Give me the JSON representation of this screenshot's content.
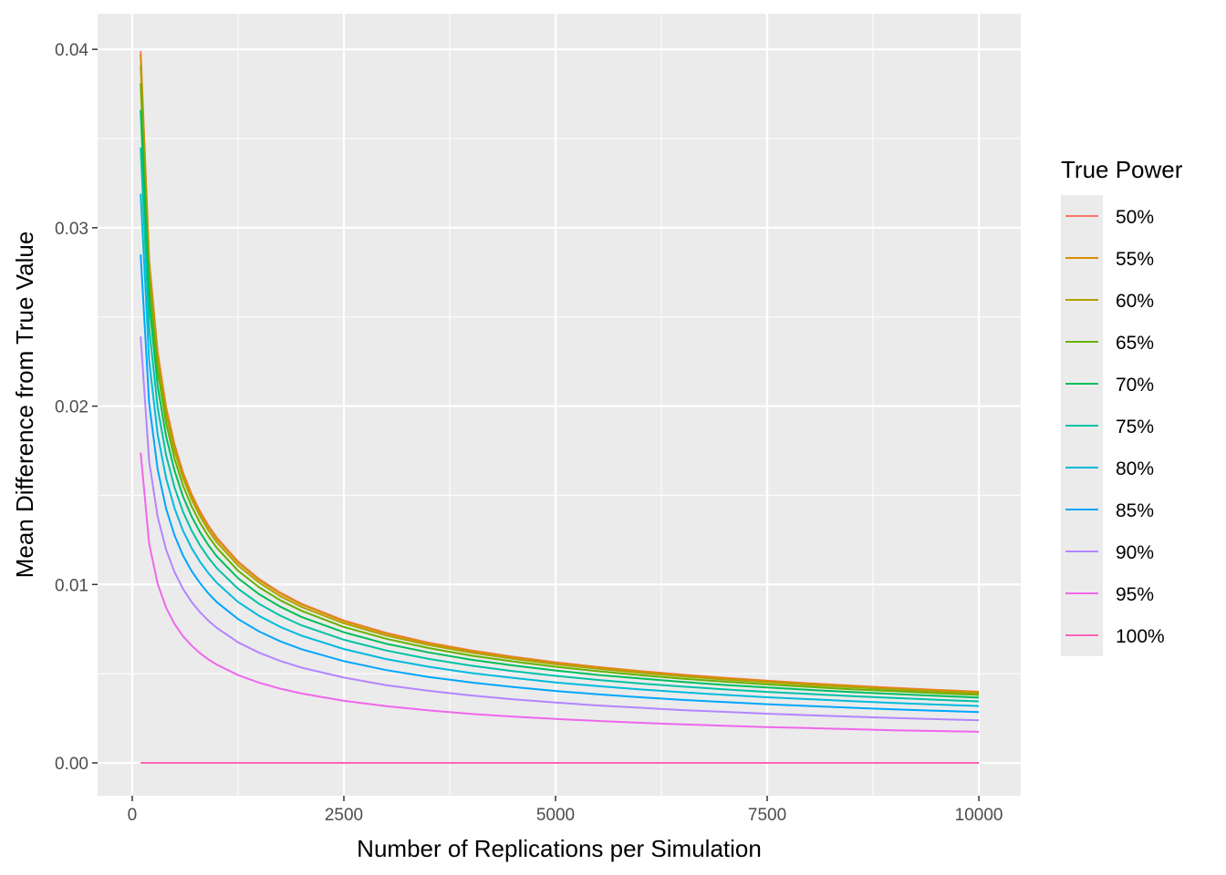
{
  "chart_data": {
    "type": "line",
    "title": "",
    "xlabel": "Number of Replications per Simulation",
    "ylabel": "Mean Difference from True Value",
    "xlim": [
      -409,
      10495
    ],
    "ylim": [
      -0.00184,
      0.042
    ],
    "x_ticks": [
      0,
      2500,
      5000,
      7500,
      10000
    ],
    "x_tick_labels": [
      "0",
      "2500",
      "5000",
      "7500",
      "10000"
    ],
    "y_ticks": [
      0,
      0.01,
      0.02,
      0.03,
      0.04
    ],
    "y_tick_labels": [
      "0.00",
      "0.01",
      "0.02",
      "0.03",
      "0.04"
    ],
    "grid": true,
    "background": "#EBEBEB",
    "legend": {
      "title": "True Power",
      "placement": "right"
    },
    "x": [
      100,
      200,
      300,
      400,
      500,
      600,
      700,
      800,
      900,
      1000,
      1250,
      1500,
      1750,
      2000,
      2500,
      3000,
      3500,
      4000,
      4500,
      5000,
      5500,
      6000,
      6500,
      7000,
      7500,
      8000,
      8500,
      9000,
      9500,
      10000
    ],
    "series": [
      {
        "name": "50%",
        "color": "#F8766D",
        "values": [
          0.0399,
          0.02821,
          0.02304,
          0.01995,
          0.01784,
          0.01629,
          0.01508,
          0.01411,
          0.0133,
          0.01262,
          0.01128,
          0.0103,
          0.00954,
          0.00892,
          0.00798,
          0.00729,
          0.00674,
          0.00631,
          0.00595,
          0.00564,
          0.00538,
          0.00515,
          0.00495,
          0.00477,
          0.00461,
          0.00446,
          0.00433,
          0.00421,
          0.00409,
          0.00399
        ]
      },
      {
        "name": "55%",
        "color": "#DB8E00",
        "values": [
          0.0397,
          0.02807,
          0.02292,
          0.01985,
          0.01775,
          0.01621,
          0.01501,
          0.01404,
          0.01323,
          0.01255,
          0.01123,
          0.01025,
          0.00949,
          0.00888,
          0.00794,
          0.00725,
          0.00671,
          0.00628,
          0.00592,
          0.00561,
          0.00535,
          0.00513,
          0.00492,
          0.00474,
          0.00459,
          0.00444,
          0.00431,
          0.00418,
          0.00407,
          0.00397
        ]
      },
      {
        "name": "60%",
        "color": "#AEA200",
        "values": [
          0.0391,
          0.02765,
          0.02258,
          0.01955,
          0.01749,
          0.01596,
          0.01478,
          0.01383,
          0.01303,
          0.01236,
          0.01106,
          0.0101,
          0.00934,
          0.00874,
          0.00782,
          0.00714,
          0.00661,
          0.00618,
          0.00583,
          0.00553,
          0.00527,
          0.00505,
          0.00485,
          0.00467,
          0.00452,
          0.00437,
          0.00424,
          0.00412,
          0.00401,
          0.00391
        ]
      },
      {
        "name": "65%",
        "color": "#64B200",
        "values": [
          0.0381,
          0.02694,
          0.022,
          0.01905,
          0.01704,
          0.01555,
          0.0144,
          0.01347,
          0.0127,
          0.01205,
          0.01077,
          0.00984,
          0.00911,
          0.00852,
          0.00762,
          0.00696,
          0.00644,
          0.00602,
          0.00568,
          0.00539,
          0.00514,
          0.00492,
          0.00472,
          0.00455,
          0.0044,
          0.00426,
          0.00413,
          0.00402,
          0.00391,
          0.00381
        ]
      },
      {
        "name": "70%",
        "color": "#00BD5C",
        "values": [
          0.0366,
          0.02588,
          0.02113,
          0.0183,
          0.01637,
          0.01494,
          0.01383,
          0.01294,
          0.0122,
          0.01157,
          0.01035,
          0.00945,
          0.00875,
          0.00818,
          0.00732,
          0.00668,
          0.00619,
          0.00579,
          0.00546,
          0.00518,
          0.00493,
          0.00473,
          0.00454,
          0.00437,
          0.00423,
          0.00409,
          0.00397,
          0.00386,
          0.00376,
          0.00366
        ]
      },
      {
        "name": "75%",
        "color": "#00C1A7",
        "values": [
          0.0345,
          0.0244,
          0.01992,
          0.01725,
          0.01543,
          0.01408,
          0.01304,
          0.0122,
          0.0115,
          0.01091,
          0.00976,
          0.00891,
          0.00825,
          0.00771,
          0.0069,
          0.0063,
          0.00583,
          0.00545,
          0.00514,
          0.00488,
          0.00465,
          0.00445,
          0.00428,
          0.00412,
          0.00398,
          0.00386,
          0.00374,
          0.00364,
          0.00354,
          0.00345
        ]
      },
      {
        "name": "80%",
        "color": "#00BADE",
        "values": [
          0.0319,
          0.02256,
          0.01842,
          0.01595,
          0.01427,
          0.01302,
          0.01206,
          0.01128,
          0.01063,
          0.01009,
          0.00902,
          0.00824,
          0.00762,
          0.00713,
          0.00638,
          0.00582,
          0.00539,
          0.00504,
          0.00476,
          0.00451,
          0.0043,
          0.00412,
          0.00396,
          0.00381,
          0.00368,
          0.00357,
          0.00346,
          0.00336,
          0.00327,
          0.00319
        ]
      },
      {
        "name": "85%",
        "color": "#00A6FF",
        "values": [
          0.0285,
          0.02015,
          0.01646,
          0.01425,
          0.01275,
          0.01163,
          0.01077,
          0.01008,
          0.0095,
          0.00901,
          0.00806,
          0.00736,
          0.00681,
          0.00637,
          0.0057,
          0.0052,
          0.00482,
          0.00451,
          0.00425,
          0.00403,
          0.00384,
          0.00368,
          0.00353,
          0.00341,
          0.00329,
          0.00319,
          0.00309,
          0.003,
          0.00292,
          0.00285
        ]
      },
      {
        "name": "90%",
        "color": "#B385FF",
        "values": [
          0.0239,
          0.0169,
          0.0138,
          0.01195,
          0.01069,
          0.00976,
          0.00903,
          0.00845,
          0.00797,
          0.00756,
          0.00676,
          0.00617,
          0.00571,
          0.00534,
          0.00478,
          0.00436,
          0.00404,
          0.00378,
          0.00356,
          0.00338,
          0.00322,
          0.00309,
          0.00296,
          0.00286,
          0.00276,
          0.00267,
          0.00259,
          0.00252,
          0.00245,
          0.00239
        ]
      },
      {
        "name": "95%",
        "color": "#EF67EB",
        "values": [
          0.0174,
          0.0123,
          0.01005,
          0.0087,
          0.00778,
          0.0071,
          0.00658,
          0.00615,
          0.0058,
          0.0055,
          0.00492,
          0.00449,
          0.00416,
          0.00389,
          0.00348,
          0.00318,
          0.00294,
          0.00275,
          0.00259,
          0.00246,
          0.00235,
          0.00225,
          0.00216,
          0.00208,
          0.00201,
          0.00195,
          0.00189,
          0.00183,
          0.00179,
          0.00174
        ]
      },
      {
        "name": "100%",
        "color": "#FF63B6",
        "values": [
          0,
          0,
          0,
          0,
          0,
          0,
          0,
          0,
          0,
          0,
          0,
          0,
          0,
          0,
          0,
          0,
          0,
          0,
          0,
          0,
          0,
          0,
          0,
          0,
          0,
          0,
          0,
          0,
          0,
          0
        ]
      }
    ]
  }
}
